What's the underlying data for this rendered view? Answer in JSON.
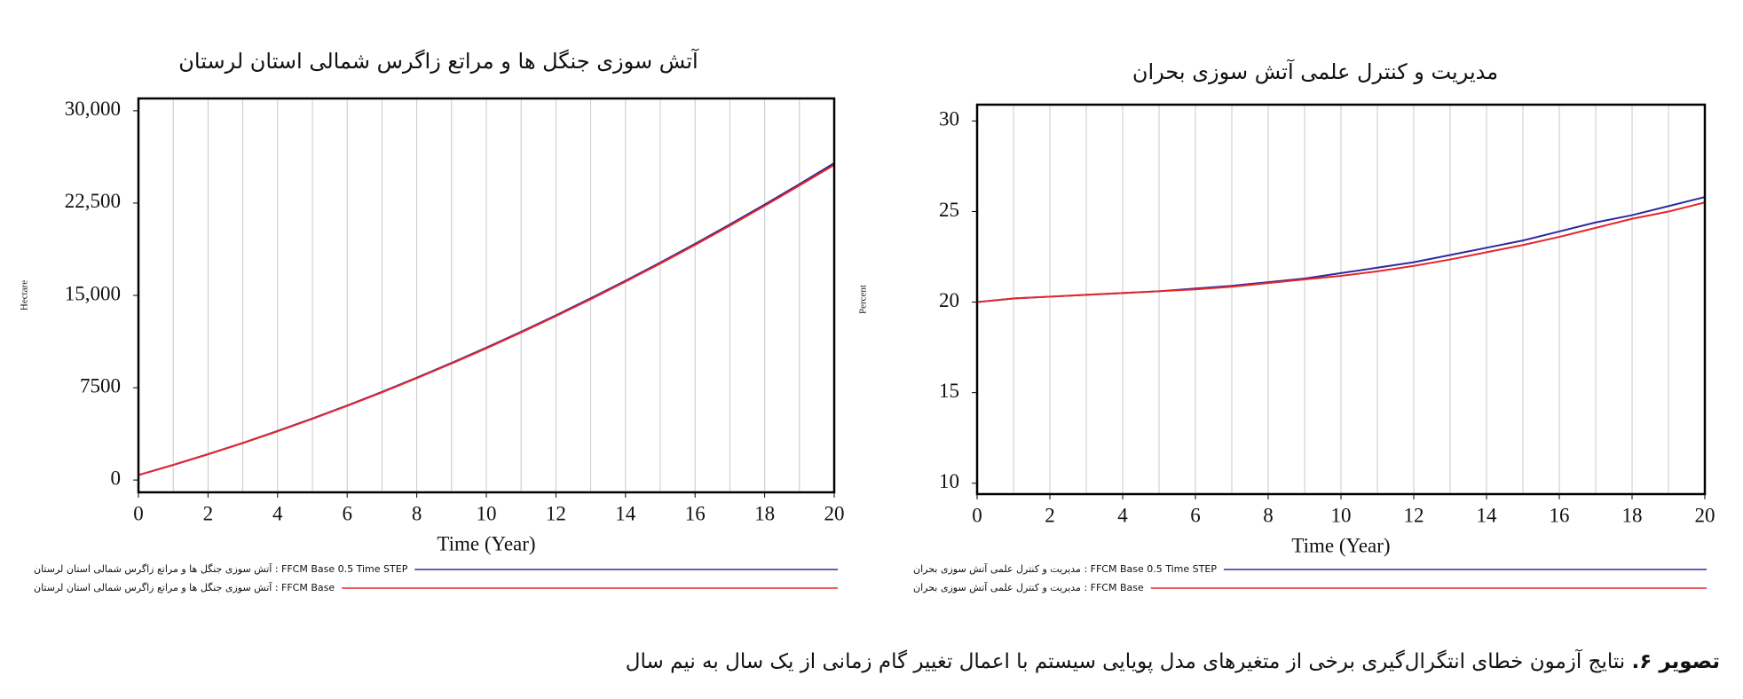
{
  "chart_data": [
    {
      "type": "line",
      "title": "آتش سوزی جنگل ها و مراتع زاگرس شمالی استان لرستان",
      "x_label": "Time (Year)",
      "y_label": "Hectare",
      "x": [
        0,
        1,
        2,
        3,
        4,
        5,
        6,
        7,
        8,
        9,
        10,
        11,
        12,
        13,
        14,
        15,
        16,
        17,
        18,
        19,
        20
      ],
      "xlim": [
        0,
        20
      ],
      "xticks": [
        0,
        2,
        4,
        6,
        8,
        10,
        12,
        14,
        16,
        18,
        20
      ],
      "ylim": [
        -1000,
        31000
      ],
      "yticks": [
        0,
        7500,
        {
          "value": 15000,
          "label": "15,000"
        },
        {
          "value": 22500,
          "label": "22,500"
        },
        {
          "value": 30000,
          "label": "30,000"
        }
      ],
      "grid": true,
      "series": [
        {
          "name": "آتش سوزی جنگل ها و مراتع زاگرس شمالی استان لرستان : FFCM Base 0.5 Time STEP",
          "color": "#2b2b9b",
          "values": [
            400,
            1226,
            2098,
            3017,
            3982,
            4994,
            6052,
            7157,
            8308,
            9506,
            10750,
            12041,
            13378,
            14762,
            16192,
            17669,
            19192,
            20762,
            22378,
            24041,
            25750
          ]
        },
        {
          "name": "آتش سوزی جنگل ها و مراتع زاگرس شمالی استان لرستان : FFCM Base",
          "color": "#e8262b",
          "values": [
            400,
            1220,
            2085,
            3000,
            3960,
            4970,
            6025,
            7125,
            8270,
            9465,
            10700,
            11985,
            13315,
            14690,
            16115,
            17585,
            19100,
            20665,
            22275,
            23930,
            25600
          ]
        }
      ]
    },
    {
      "type": "line",
      "title": "مدیریت و کنترل علمی آتش سوزی بحران",
      "x_label": "Time (Year)",
      "y_label": "Percent",
      "x": [
        0,
        1,
        2,
        3,
        4,
        5,
        6,
        7,
        8,
        9,
        10,
        11,
        12,
        13,
        14,
        15,
        16,
        17,
        18,
        19,
        20
      ],
      "xlim": [
        0,
        20
      ],
      "xticks": [
        0,
        2,
        4,
        6,
        8,
        10,
        12,
        14,
        16,
        18,
        20
      ],
      "ylim": [
        9.4,
        30.9
      ],
      "yticks": [
        10,
        15,
        20,
        25,
        30
      ],
      "grid": true,
      "series": [
        {
          "name": "مدیریت و کنترل علمی آتش سوزی بحران : FFCM Base 0.5 Time STEP",
          "color": "#2b2b9b",
          "values": [
            20.0,
            20.2,
            20.3,
            20.4,
            20.5,
            20.6,
            20.75,
            20.9,
            21.1,
            21.3,
            21.6,
            21.9,
            22.2,
            22.6,
            23.0,
            23.4,
            23.9,
            24.4,
            24.8,
            25.3,
            25.8
          ]
        },
        {
          "name": "مدیریت و کنترل علمی آتش سوزی بحران : FFCM Base",
          "color": "#e8262b",
          "values": [
            20.0,
            20.2,
            20.3,
            20.4,
            20.5,
            20.6,
            20.7,
            20.85,
            21.05,
            21.25,
            21.45,
            21.7,
            22.0,
            22.35,
            22.75,
            23.15,
            23.6,
            24.1,
            24.6,
            25.0,
            25.5
          ]
        }
      ]
    }
  ],
  "caption": {
    "label": "تصویر ۶.",
    "text": "نتایج آزمون خطای انتگرال‌گیری برخی از متغیرهای مدل پویایی سیستم با اعمال تغییر گام زمانی از یک سال به نیم سال"
  }
}
